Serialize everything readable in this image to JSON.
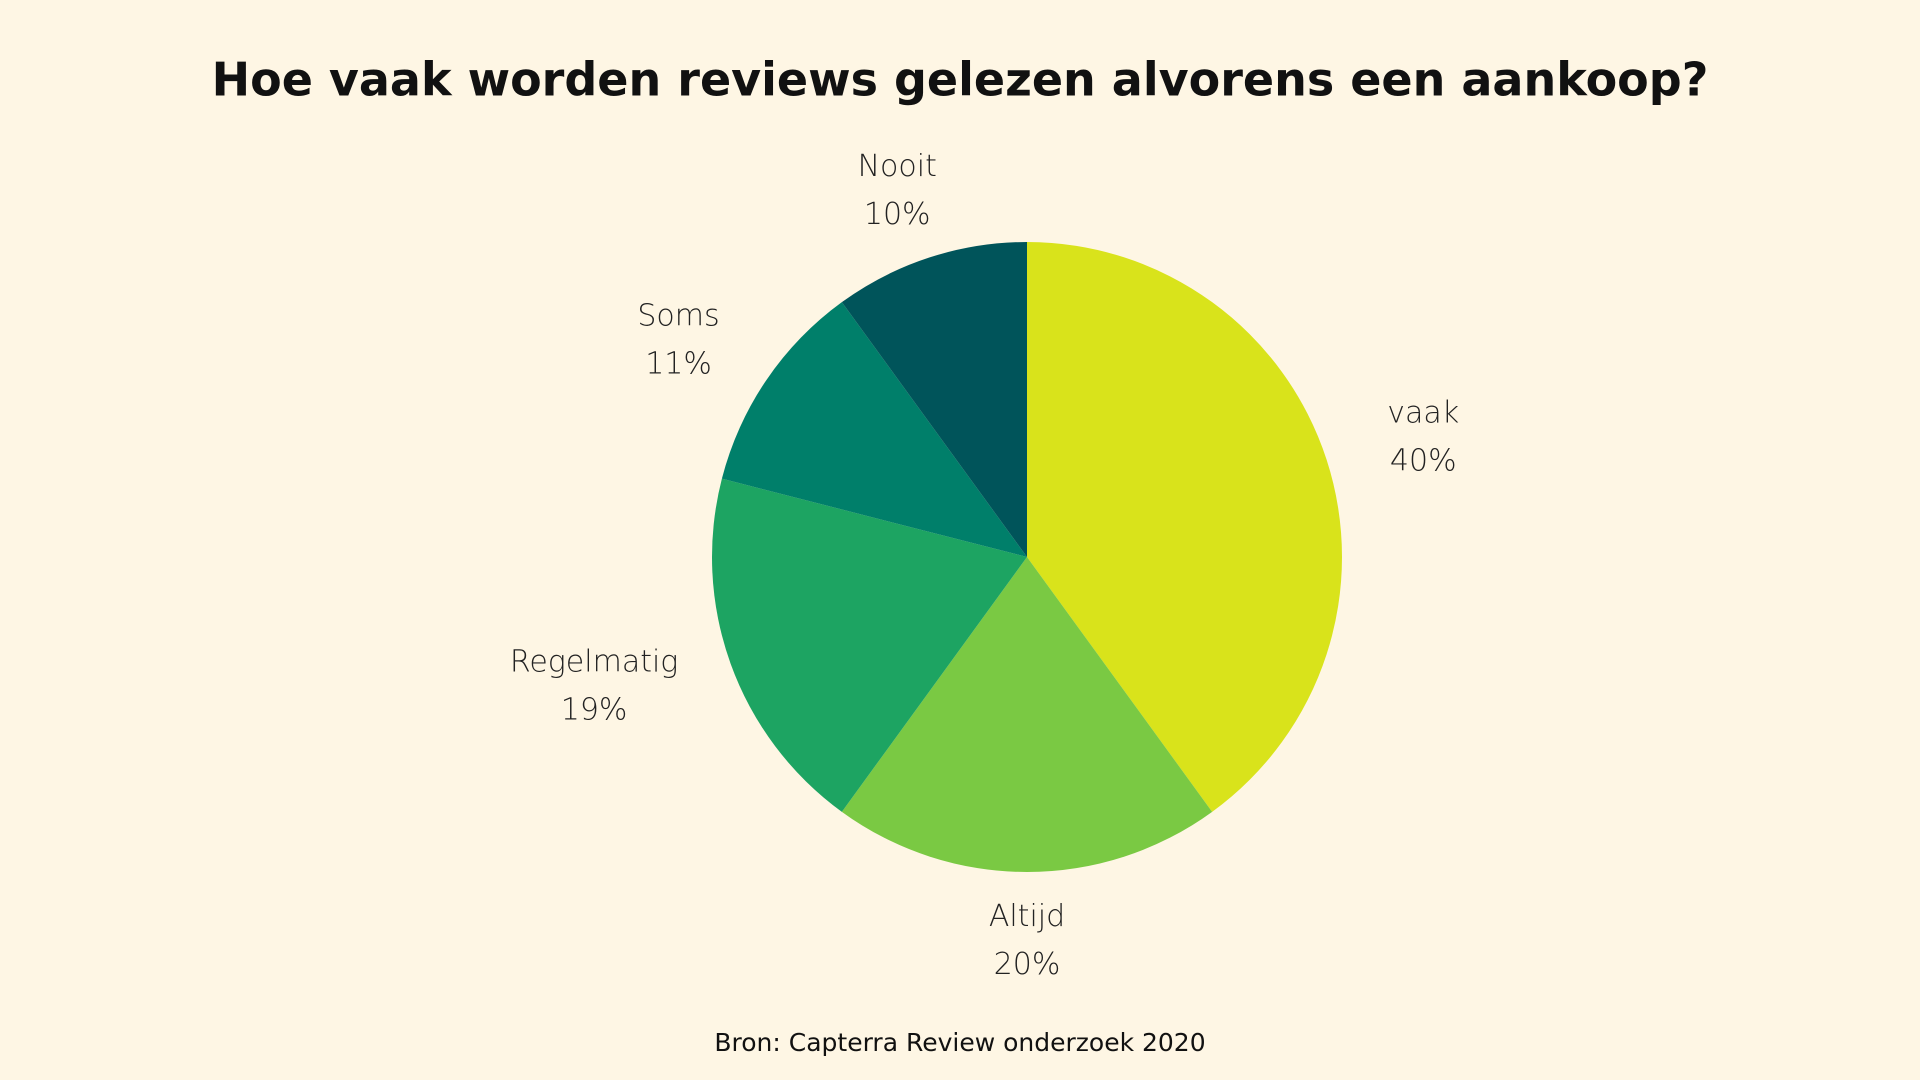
{
  "chart_data": {
    "type": "pie",
    "title": "Hoe vaak worden reviews gelezen alvorens een aankoop?",
    "categories": [
      "vaak",
      "Altijd",
      "Regelmatig",
      "Soms",
      "Nooit"
    ],
    "values": [
      40,
      20,
      19,
      11,
      10
    ],
    "value_labels": [
      "40%",
      "20%",
      "19%",
      "11%",
      "10%"
    ],
    "colors": [
      "#d9e31b",
      "#7ac943",
      "#1da462",
      "#007f6a",
      "#00545a"
    ],
    "source": "Bron: Capterra Review onderzoek 2020"
  }
}
